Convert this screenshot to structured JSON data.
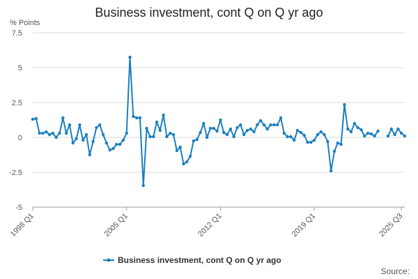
{
  "chart_data": {
    "type": "line",
    "title": "Business investment, cont Q on Q yr ago",
    "ylabel": "% Points",
    "ylim": [
      -5,
      7.5
    ],
    "yticks": [
      7.5,
      5,
      2.5,
      0,
      -2.5,
      -5
    ],
    "ytick_labels": [
      "7.5",
      "5",
      "2.5",
      "0",
      "-2.5",
      "-5"
    ],
    "xtick_labels": [
      "1998 Q1",
      "2005 Q1",
      "2012 Q1",
      "2019 Q1",
      "2025 Q3"
    ],
    "xtick_indices": [
      0,
      28,
      56,
      84,
      110
    ],
    "grid": true,
    "legend_position": "bottom",
    "series": [
      {
        "name": "Business investment, cont Q on Q yr ago",
        "color": "#1a7fbf",
        "values": [
          1.3,
          1.35,
          0.3,
          0.3,
          0.4,
          0.2,
          0.3,
          0.0,
          0.3,
          1.4,
          0.3,
          0.9,
          -0.4,
          -0.1,
          0.9,
          -0.2,
          0.2,
          -1.25,
          -0.3,
          0.7,
          0.9,
          0.2,
          -0.4,
          -0.9,
          -0.8,
          -0.5,
          -0.5,
          -0.2,
          0.3,
          5.75,
          1.5,
          1.4,
          1.4,
          -3.45,
          0.65,
          0.05,
          0.05,
          1.1,
          0.5,
          1.6,
          0.05,
          0.3,
          0.2,
          -0.95,
          -0.7,
          -1.9,
          -1.75,
          -1.35,
          -0.25,
          -0.15,
          0.35,
          1.0,
          0.0,
          0.65,
          0.65,
          0.45,
          1.25,
          0.35,
          0.2,
          0.6,
          0.05,
          0.7,
          0.9,
          0.2,
          0.5,
          0.6,
          0.4,
          0.9,
          1.2,
          0.9,
          0.6,
          0.9,
          0.9,
          0.9,
          1.4,
          0.3,
          0.05,
          0.05,
          -0.2,
          0.5,
          0.35,
          0.15,
          -0.35,
          -0.35,
          -0.2,
          0.2,
          0.4,
          0.2,
          -0.3,
          -2.4,
          -1.0,
          -0.4,
          -0.5,
          2.35,
          0.6,
          0.4,
          1.0,
          0.7,
          0.55,
          0.1,
          0.3,
          0.25,
          0.1,
          0.45,
          null,
          null,
          0.1,
          0.6,
          0.2,
          0.6,
          0.3,
          0.1
        ]
      }
    ]
  },
  "footer": {
    "source_label": "Source:"
  }
}
